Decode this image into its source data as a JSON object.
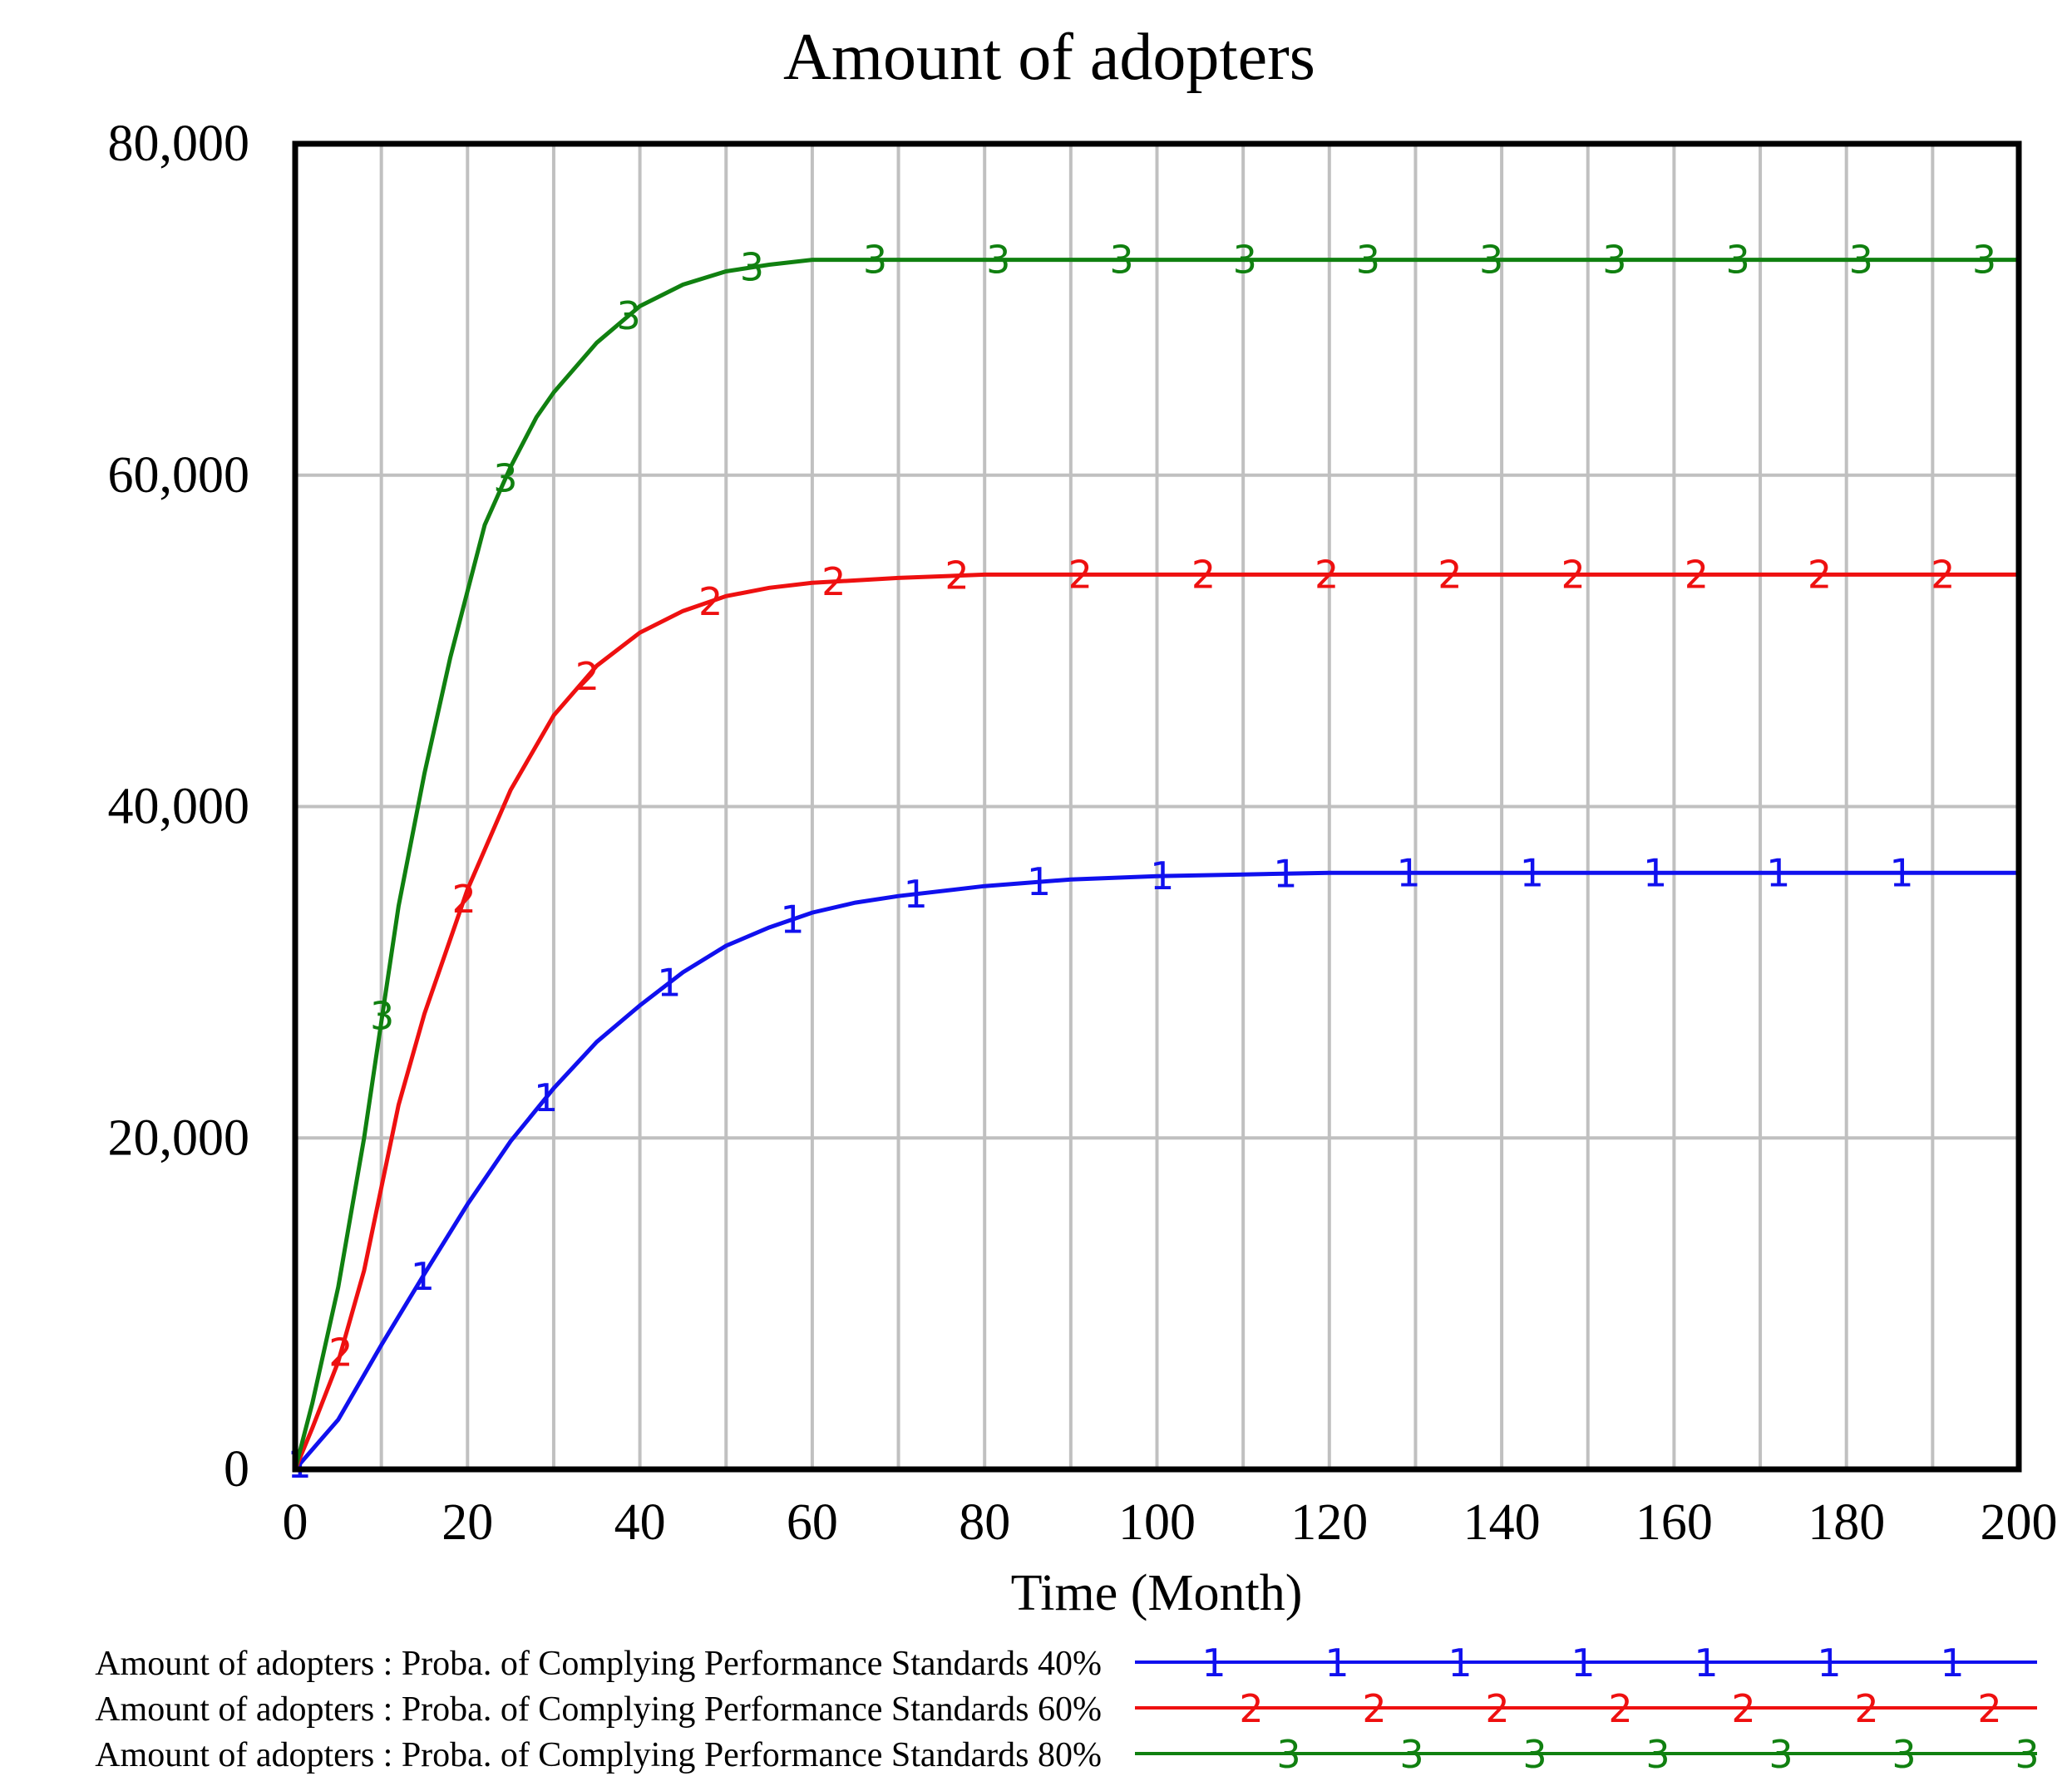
{
  "chart_data": {
    "type": "line",
    "title": "Amount of adopters",
    "xlabel": "Time (Month)",
    "ylabel": "",
    "xlim": [
      0,
      200
    ],
    "ylim": [
      0,
      80000
    ],
    "x_ticks": [
      0,
      20,
      40,
      60,
      80,
      100,
      120,
      140,
      160,
      180,
      200
    ],
    "x_tick_labels": [
      "0",
      "20",
      "40",
      "60",
      "80",
      "100",
      "120",
      "140",
      "160",
      "180",
      "200"
    ],
    "y_ticks": [
      0,
      20000,
      40000,
      60000,
      80000
    ],
    "y_tick_labels": [
      "0",
      "20,000",
      "40,000",
      "60,000",
      "80,000"
    ],
    "grid": true,
    "legend_position": "bottom",
    "series": [
      {
        "name": "Amount of adopters : Proba. of Complying Performance Standards 40%",
        "marker": "1",
        "color": "#1010ee",
        "x": [
          0,
          5,
          10,
          15,
          20,
          25,
          30,
          35,
          40,
          45,
          50,
          55,
          60,
          65,
          70,
          80,
          90,
          100,
          110,
          120,
          140,
          160,
          180,
          200
        ],
        "y": [
          0,
          3000,
          7500,
          11800,
          16000,
          19800,
          23000,
          25800,
          28000,
          30000,
          31600,
          32700,
          33600,
          34200,
          34600,
          35200,
          35600,
          35800,
          35900,
          36000,
          36000,
          36000,
          36000,
          36000
        ]
      },
      {
        "name": "Amount of adopters : Proba. of Complying Performance Standards 60%",
        "marker": "2",
        "color": "#ee1010",
        "x": [
          0,
          2,
          5,
          8,
          10,
          12,
          15,
          18,
          20,
          25,
          30,
          35,
          40,
          45,
          50,
          55,
          60,
          70,
          80,
          90,
          100,
          120,
          140,
          160,
          180,
          200
        ],
        "y": [
          0,
          2500,
          6500,
          12000,
          17000,
          22000,
          27500,
          32000,
          35000,
          41000,
          45500,
          48500,
          50500,
          51800,
          52700,
          53200,
          53500,
          53800,
          54000,
          54000,
          54000,
          54000,
          54000,
          54000,
          54000,
          54000
        ]
      },
      {
        "name": "Amount of adopters : Proba. of Complying Performance Standards 80%",
        "marker": "3",
        "color": "#108010",
        "x": [
          0,
          2,
          5,
          8,
          10,
          12,
          15,
          18,
          20,
          22,
          25,
          28,
          30,
          35,
          40,
          45,
          50,
          55,
          60,
          70,
          80,
          100,
          120,
          140,
          160,
          180,
          200
        ],
        "y": [
          0,
          4000,
          11000,
          20000,
          27000,
          34000,
          42000,
          49000,
          53000,
          57000,
          60500,
          63500,
          65000,
          68000,
          70200,
          71500,
          72300,
          72700,
          73000,
          73000,
          73000,
          73000,
          73000,
          73000,
          73000,
          73000,
          73000
        ]
      }
    ]
  }
}
